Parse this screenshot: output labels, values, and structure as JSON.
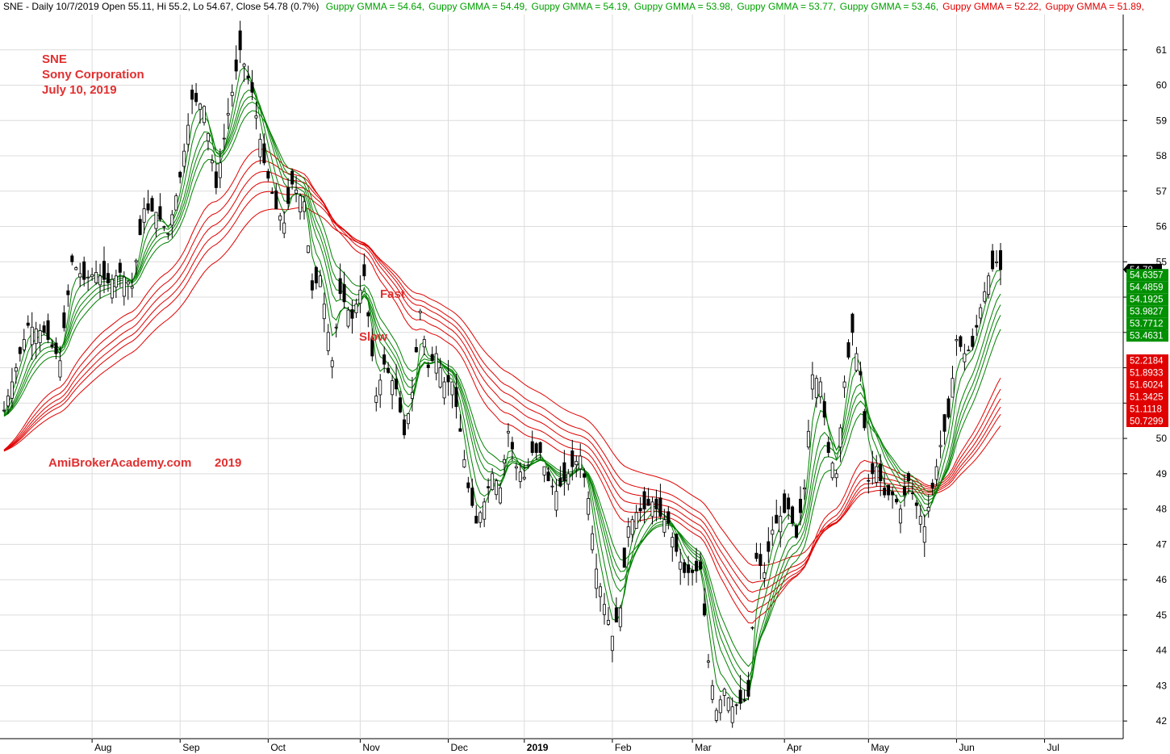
{
  "chart_data": {
    "type": "line",
    "header": {
      "text": "SNE - Daily 10/7/2019 Open 55.11, Hi 55.2, Lo 54.67, Close 54.78 (0.7%)",
      "gmma": [
        {
          "label": "Guppy GMMA = 54.64,",
          "color": "#00a000"
        },
        {
          "label": "Guppy GMMA = 54.49,",
          "color": "#00a000"
        },
        {
          "label": "Guppy GMMA = 54.19,",
          "color": "#00a000"
        },
        {
          "label": "Guppy GMMA = 53.98,",
          "color": "#00a000"
        },
        {
          "label": "Guppy GMMA = 53.77,",
          "color": "#00a000"
        },
        {
          "label": "Guppy GMMA = 53.46,",
          "color": "#00a000"
        },
        {
          "label": "Guppy GMMA = 52.22,",
          "color": "#e00000"
        },
        {
          "label": "Guppy GMMA = 51.89,",
          "color": "#e00000"
        }
      ]
    },
    "annotations": {
      "ticker": "SNE",
      "company": "Sony Corporation",
      "date": "July 10, 2019",
      "fast": "Fast",
      "slow": "Slow",
      "watermark": "AmiBrokerAcademy.com",
      "watermark_year": "2019"
    },
    "y_ticks": [
      42,
      43,
      44,
      45,
      46,
      47,
      48,
      49,
      50,
      51,
      52,
      53,
      54,
      55,
      56,
      57,
      58,
      59,
      60,
      61
    ],
    "ylim": [
      41.5,
      62
    ],
    "months": [
      {
        "label": "Aug",
        "x": 22
      },
      {
        "label": "Sep",
        "x": 44
      },
      {
        "label": "Oct",
        "x": 66
      },
      {
        "label": "Nov",
        "x": 89
      },
      {
        "label": "Dec",
        "x": 111
      },
      {
        "label": "2019",
        "x": 130,
        "bold": true
      },
      {
        "label": "Feb",
        "x": 152
      },
      {
        "label": "Mar",
        "x": 172
      },
      {
        "label": "Apr",
        "x": 195
      },
      {
        "label": "May",
        "x": 216
      },
      {
        "label": "Jun",
        "x": 238
      },
      {
        "label": "Jul",
        "x": 260
      }
    ],
    "last_price": "54.78",
    "fast_values": [
      "54.6357",
      "54.4859",
      "54.1925",
      "53.9827",
      "53.7712",
      "53.4631"
    ],
    "slow_values": [
      "52.2184",
      "51.8933",
      "51.6024",
      "51.3425",
      "51.1118",
      "50.7299"
    ],
    "close_path": [
      [
        0,
        50.8
      ],
      [
        6,
        53.2
      ],
      [
        10,
        53.0
      ],
      [
        14,
        52.2
      ],
      [
        17,
        55.0
      ],
      [
        20,
        54.5
      ],
      [
        23,
        54.7
      ],
      [
        26,
        54.4
      ],
      [
        29,
        54.7
      ],
      [
        32,
        54.3
      ],
      [
        35,
        56.5
      ],
      [
        38,
        56.4
      ],
      [
        41,
        55.8
      ],
      [
        44,
        57.4
      ],
      [
        47,
        59.6
      ],
      [
        50,
        59.4
      ],
      [
        53,
        57.1
      ],
      [
        56,
        59.2
      ],
      [
        59,
        61.0
      ],
      [
        62,
        59.8
      ],
      [
        65,
        57.8
      ],
      [
        68,
        56.5
      ],
      [
        70,
        56.1
      ],
      [
        72,
        57.2
      ],
      [
        75,
        56.7
      ],
      [
        77,
        54.2
      ],
      [
        79,
        54.6
      ],
      [
        82,
        52.2
      ],
      [
        84,
        54.1
      ],
      [
        87,
        53.4
      ],
      [
        90,
        54.6
      ],
      [
        93,
        51.2
      ],
      [
        95,
        52.1
      ],
      [
        98,
        51.4
      ],
      [
        100,
        50.1
      ],
      [
        102,
        51.3
      ],
      [
        104,
        53.6
      ],
      [
        106,
        52.0
      ],
      [
        108,
        52.4
      ],
      [
        110,
        51.6
      ],
      [
        112,
        51.6
      ],
      [
        114,
        50.2
      ],
      [
        116,
        48.6
      ],
      [
        118,
        47.6
      ],
      [
        120,
        48.2
      ],
      [
        122,
        49.0
      ],
      [
        124,
        48.6
      ],
      [
        126,
        50.2
      ],
      [
        128,
        49.2
      ],
      [
        130,
        48.9
      ],
      [
        132,
        49.6
      ],
      [
        134,
        49.6
      ],
      [
        136,
        48.8
      ],
      [
        138,
        48.5
      ],
      [
        140,
        48.8
      ],
      [
        142,
        49.2
      ],
      [
        144,
        49.5
      ],
      [
        146,
        48.3
      ],
      [
        148,
        46.3
      ],
      [
        150,
        45.3
      ],
      [
        152,
        44.4
      ],
      [
        154,
        45.2
      ],
      [
        156,
        47.5
      ],
      [
        158,
        47.9
      ],
      [
        160,
        48.0
      ],
      [
        162,
        48.2
      ],
      [
        164,
        47.8
      ],
      [
        166,
        47.6
      ],
      [
        168,
        46.8
      ],
      [
        170,
        46.2
      ],
      [
        172,
        46.2
      ],
      [
        174,
        46.3
      ],
      [
        176,
        43.7
      ],
      [
        178,
        42.3
      ],
      [
        180,
        42.9
      ],
      [
        182,
        42.4
      ],
      [
        184,
        42.5
      ],
      [
        186,
        42.7
      ],
      [
        188,
        46.6
      ],
      [
        190,
        46.2
      ],
      [
        192,
        47.4
      ],
      [
        194,
        47.8
      ],
      [
        196,
        48.0
      ],
      [
        198,
        47.2
      ],
      [
        200,
        48.6
      ],
      [
        202,
        51.8
      ],
      [
        204,
        51.6
      ],
      [
        206,
        49.6
      ],
      [
        208,
        49.0
      ],
      [
        210,
        51.6
      ],
      [
        212,
        53.0
      ],
      [
        214,
        51.8
      ],
      [
        216,
        48.8
      ],
      [
        218,
        49.2
      ],
      [
        220,
        48.4
      ],
      [
        222,
        48.4
      ],
      [
        224,
        48.0
      ],
      [
        226,
        48.8
      ],
      [
        228,
        48.1
      ],
      [
        230,
        47.5
      ],
      [
        232,
        48.6
      ],
      [
        234,
        49.8
      ],
      [
        236,
        50.6
      ],
      [
        238,
        52.8
      ],
      [
        240,
        52.4
      ],
      [
        242,
        52.6
      ],
      [
        244,
        53.7
      ],
      [
        246,
        54.6
      ],
      [
        248,
        55.0
      ],
      [
        249,
        54.78
      ]
    ]
  }
}
